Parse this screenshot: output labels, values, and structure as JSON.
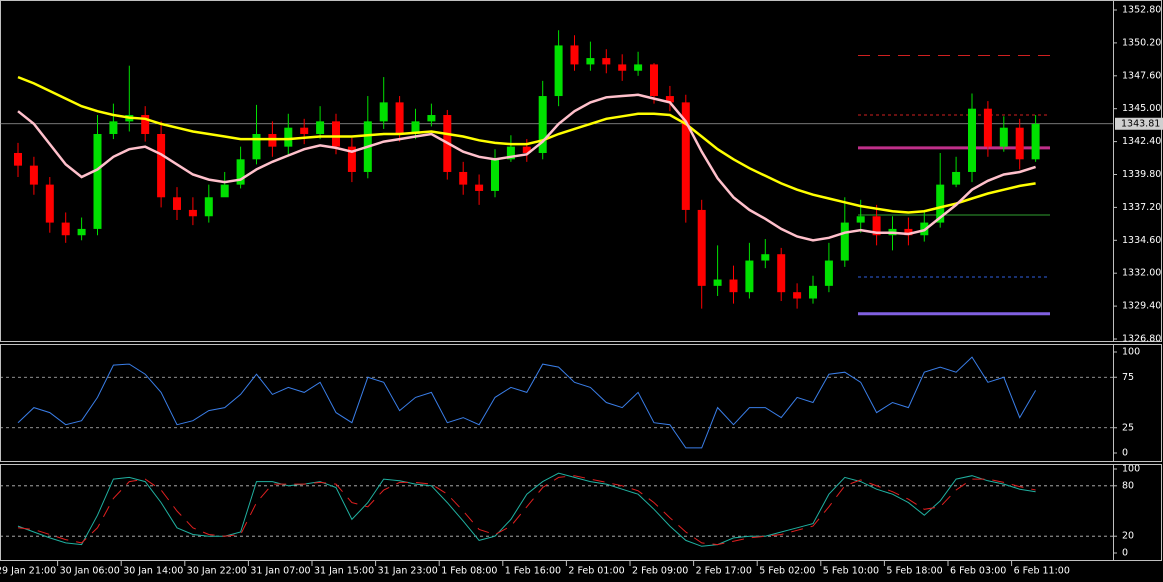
{
  "chart_data": [
    {
      "type": "candlestick",
      "categories": [
        "29 Jan 21:00",
        null,
        null,
        null,
        "30 Jan 06:00",
        null,
        null,
        null,
        "30 Jan 14:00",
        null,
        null,
        null,
        "30 Jan 22:00",
        null,
        null,
        null,
        "31 Jan 07:00",
        null,
        null,
        null,
        "31 Jan 15:00",
        null,
        null,
        null,
        "31 Jan 23:00",
        null,
        null,
        null,
        "1 Feb 08:00",
        null,
        null,
        null,
        "1 Feb 16:00",
        null,
        null,
        null,
        "2 Feb 01:00",
        null,
        null,
        null,
        "2 Feb 09:00",
        null,
        null,
        null,
        "2 Feb 17:00",
        null,
        null,
        null,
        "5 Feb 02:00",
        null,
        null,
        null,
        "5 Feb 10:00",
        null,
        null,
        null,
        "5 Feb 18:00",
        null,
        null,
        null,
        "6 Feb 03:00",
        null,
        null,
        null,
        "6 Feb 11:00"
      ],
      "open": [
        1341.5,
        1340.5,
        1339,
        1336,
        1335,
        1335.5,
        1343,
        1344,
        1344.5,
        1343,
        1338,
        1337,
        1336.5,
        1338,
        1339,
        1341,
        1343,
        1342,
        1343.5,
        1343,
        1344,
        1342,
        1340,
        1344,
        1345.5,
        1343,
        1344,
        1344.5,
        1340,
        1339,
        1338.5,
        1341,
        1342,
        1341.5,
        1346,
        1350,
        1348.5,
        1349,
        1348.5,
        1348,
        1348.5,
        1346,
        1345.5,
        1337,
        1331,
        1331.5,
        1330.5,
        1333,
        1333.5,
        1330.5,
        1330,
        1331,
        1333,
        1336,
        1336.5,
        1335,
        1335.5,
        1335,
        1336,
        1339,
        1340,
        1345,
        1342,
        1343.5,
        1341
      ],
      "high": [
        1342.3,
        1341.2,
        1339.6,
        1336.8,
        1336.4,
        1344.5,
        1345.4,
        1348.4,
        1345.2,
        1344,
        1338.8,
        1338,
        1339,
        1340,
        1342,
        1345.3,
        1344,
        1344.6,
        1344.2,
        1345.2,
        1344.6,
        1342.7,
        1346,
        1347.5,
        1346,
        1345,
        1345.4,
        1344.9,
        1340.8,
        1339.8,
        1341.8,
        1342.9,
        1342.6,
        1347.2,
        1351.2,
        1350.8,
        1350.3,
        1349.7,
        1349.3,
        1349.5,
        1348.6,
        1346.8,
        1346.1,
        1337.8,
        1334.2,
        1332.6,
        1334.4,
        1334.7,
        1334,
        1331.2,
        1331.8,
        1334.4,
        1338,
        1337.8,
        1337.4,
        1336.5,
        1336.4,
        1337,
        1341.5,
        1341.2,
        1346.2,
        1345.6,
        1344.4,
        1344.2,
        1344.5
      ],
      "low": [
        1339.6,
        1338.2,
        1335.2,
        1334.4,
        1334.6,
        1335,
        1342.6,
        1343.2,
        1342.4,
        1337.2,
        1336.2,
        1335.8,
        1336,
        1338.2,
        1338.7,
        1340.6,
        1341.2,
        1341.4,
        1342.2,
        1342.6,
        1341.4,
        1339.2,
        1339.5,
        1343.4,
        1342.4,
        1342.6,
        1343.6,
        1339.4,
        1338.2,
        1337.4,
        1338,
        1340.8,
        1340.8,
        1341,
        1345.2,
        1348,
        1348,
        1347.8,
        1347.2,
        1347.6,
        1345.4,
        1344.8,
        1336,
        1329.2,
        1330.2,
        1329.6,
        1330,
        1332.4,
        1329.8,
        1329.2,
        1329.6,
        1330.5,
        1332.5,
        1335.2,
        1334.2,
        1333.8,
        1334.2,
        1334.5,
        1335.6,
        1338.8,
        1339.2,
        1341.2,
        1341.6,
        1340.2,
        1340.8
      ],
      "close": [
        1340.5,
        1339,
        1336,
        1335,
        1335.5,
        1343,
        1344,
        1344.5,
        1343,
        1338,
        1337,
        1336.5,
        1338,
        1339,
        1341,
        1343,
        1342,
        1343.5,
        1343,
        1344,
        1342,
        1340,
        1344,
        1345.5,
        1343,
        1344,
        1344.5,
        1340,
        1339,
        1338.5,
        1341,
        1342,
        1341.5,
        1346,
        1350,
        1348.5,
        1349,
        1348.5,
        1348,
        1348.5,
        1346,
        1345.5,
        1337,
        1331,
        1331.5,
        1330.5,
        1333,
        1333.5,
        1330.5,
        1330,
        1331,
        1333,
        1336,
        1336.5,
        1335,
        1335.5,
        1335,
        1336,
        1339,
        1340,
        1345,
        1342,
        1343.5,
        1341,
        1343.8
      ],
      "up_color": "#00e000",
      "down_color": "#ff0000",
      "lines": [
        {
          "color": "#ffff00",
          "values": [
            1347.5,
            1347,
            1346.4,
            1345.8,
            1345.2,
            1344.8,
            1344.5,
            1344.3,
            1344.2,
            1343.8,
            1343.5,
            1343.2,
            1343,
            1342.8,
            1342.6,
            1342.6,
            1342.6,
            1342.6,
            1342.7,
            1342.8,
            1342.8,
            1342.8,
            1342.9,
            1343,
            1343,
            1343.1,
            1343.2,
            1343,
            1342.8,
            1342.5,
            1342.3,
            1342.2,
            1342.2,
            1342.5,
            1343,
            1343.4,
            1343.8,
            1344.2,
            1344.4,
            1344.6,
            1344.6,
            1344.5,
            1343.8,
            1342.8,
            1341.8,
            1341,
            1340.3,
            1339.7,
            1339.1,
            1338.6,
            1338.2,
            1337.9,
            1337.6,
            1337.3,
            1337.1,
            1336.9,
            1336.8,
            1336.9,
            1337.2,
            1337.5,
            1337.9,
            1338.3,
            1338.6,
            1338.9,
            1339.1
          ]
        },
        {
          "color": "#ffc0cb",
          "values": [
            1344.8,
            1343.8,
            1342.2,
            1340.6,
            1339.6,
            1340.2,
            1341.2,
            1341.8,
            1342,
            1341.4,
            1340.6,
            1339.8,
            1339.4,
            1339.2,
            1339.4,
            1340.2,
            1340.8,
            1341.3,
            1341.8,
            1342.1,
            1341.9,
            1341.6,
            1342,
            1342.4,
            1342.6,
            1342.8,
            1343,
            1342.3,
            1341.6,
            1341.2,
            1341,
            1341.2,
            1341.4,
            1342.4,
            1343.8,
            1344.8,
            1345.5,
            1345.9,
            1346,
            1346.1,
            1345.8,
            1345.5,
            1344,
            1341.6,
            1339.5,
            1338,
            1337,
            1336.3,
            1335.5,
            1334.9,
            1334.6,
            1334.8,
            1335.2,
            1335.4,
            1335.2,
            1335.2,
            1335.1,
            1335.4,
            1336.4,
            1337.4,
            1338.6,
            1339.3,
            1339.8,
            1340,
            1340.4
          ]
        }
      ],
      "levels": [
        {
          "value": 1349.2,
          "color": "#d02020",
          "style": "dashed"
        },
        {
          "value": 1344.5,
          "color": "#d02020",
          "style": "dotted"
        },
        {
          "value": 1341.9,
          "color": "#c0308a",
          "style": "solid"
        },
        {
          "value": 1336.6,
          "color": "#30a030",
          "style": "thin"
        },
        {
          "value": 1331.7,
          "color": "#3060e0",
          "style": "dotted"
        },
        {
          "value": 1328.8,
          "color": "#8060e0",
          "style": "solid"
        }
      ],
      "last_price": 1343.81,
      "ylim": [
        1326.8,
        1352.8
      ],
      "yticks": [
        {
          "value": 1352.8,
          "label": "1352.80"
        },
        {
          "value": 1350.2,
          "label": "1350.20"
        },
        {
          "value": 1347.6,
          "label": "1347.60"
        },
        {
          "value": 1345,
          "label": "1345.00"
        },
        {
          "value": 1342.4,
          "label": "1342.40"
        },
        {
          "value": 1339.8,
          "label": "1339.80"
        },
        {
          "value": 1337.2,
          "label": "1337.20"
        },
        {
          "value": 1334.6,
          "label": "1334.60"
        },
        {
          "value": 1332,
          "label": "1332.00"
        },
        {
          "value": 1329.4,
          "label": "1329.40"
        },
        {
          "value": 1326.8,
          "label": "1326.80"
        }
      ]
    },
    {
      "type": "line",
      "series": [
        {
          "color": "#3a7ee8",
          "style": "solid",
          "values": [
            30,
            45,
            40,
            28,
            32,
            55,
            87,
            88,
            78,
            60,
            28,
            32,
            42,
            45,
            58,
            78,
            58,
            65,
            60,
            70,
            40,
            30,
            75,
            70,
            42,
            55,
            60,
            30,
            35,
            28,
            55,
            65,
            60,
            88,
            85,
            70,
            65,
            50,
            45,
            60,
            30,
            28,
            5,
            5,
            45,
            28,
            45,
            45,
            35,
            55,
            50,
            78,
            80,
            70,
            40,
            50,
            45,
            80,
            85,
            80,
            95,
            70,
            75,
            35,
            62
          ]
        }
      ],
      "ylim": [
        0,
        100
      ],
      "yticks": [
        0,
        25,
        75,
        100
      ],
      "levels": [
        25,
        75
      ]
    },
    {
      "type": "line",
      "series": [
        {
          "color": "#20b0a0",
          "style": "solid",
          "values": [
            32,
            25,
            18,
            12,
            10,
            45,
            88,
            90,
            85,
            60,
            30,
            22,
            20,
            20,
            25,
            85,
            85,
            80,
            82,
            85,
            78,
            40,
            60,
            88,
            86,
            82,
            80,
            60,
            38,
            15,
            20,
            40,
            70,
            85,
            95,
            90,
            85,
            82,
            76,
            70,
            52,
            32,
            15,
            8,
            10,
            18,
            20,
            20,
            25,
            30,
            35,
            70,
            90,
            85,
            76,
            70,
            60,
            45,
            62,
            88,
            92,
            86,
            82,
            76,
            73
          ]
        },
        {
          "color": "#e02020",
          "style": "dashed",
          "values": [
            30,
            28,
            22,
            16,
            12,
            30,
            65,
            85,
            88,
            75,
            50,
            30,
            22,
            20,
            22,
            60,
            82,
            82,
            82,
            84,
            82,
            60,
            55,
            75,
            84,
            84,
            82,
            70,
            50,
            28,
            22,
            32,
            55,
            78,
            90,
            92,
            88,
            84,
            80,
            74,
            60,
            42,
            25,
            12,
            10,
            14,
            18,
            20,
            22,
            27,
            32,
            55,
            80,
            87,
            80,
            73,
            64,
            52,
            55,
            75,
            88,
            88,
            84,
            79,
            75
          ]
        }
      ],
      "ylim": [
        0,
        100
      ],
      "yticks": [
        0,
        20,
        80,
        100
      ],
      "levels": [
        20,
        80
      ]
    }
  ]
}
